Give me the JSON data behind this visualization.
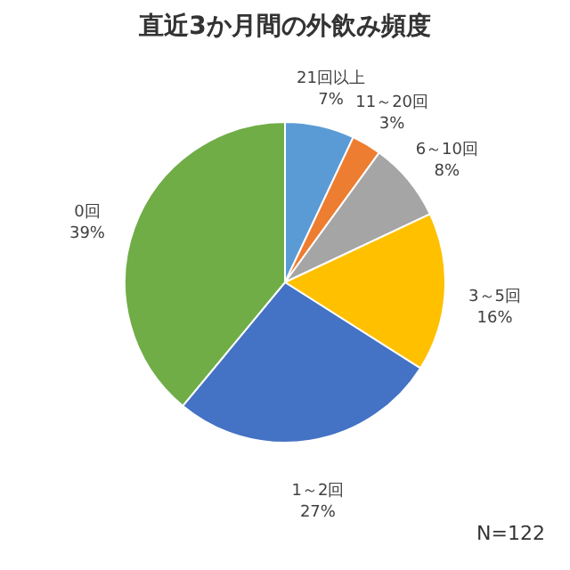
{
  "chart_data": {
    "type": "pie",
    "title": "直近3か月間の外飲み頻度",
    "categories": [
      "21回以上",
      "11～20回",
      "6～10回",
      "3～5回",
      "1～2回",
      "0回"
    ],
    "values": [
      7,
      3,
      8,
      16,
      27,
      39
    ],
    "value_labels": [
      "7%",
      "3%",
      "8%",
      "16%",
      "27%",
      "39%"
    ],
    "colors": [
      "#5b9bd5",
      "#ed7d31",
      "#a5a5a5",
      "#ffc000",
      "#4472c4",
      "#70ad47"
    ],
    "annotations": [
      "N=122"
    ],
    "legend": false
  }
}
